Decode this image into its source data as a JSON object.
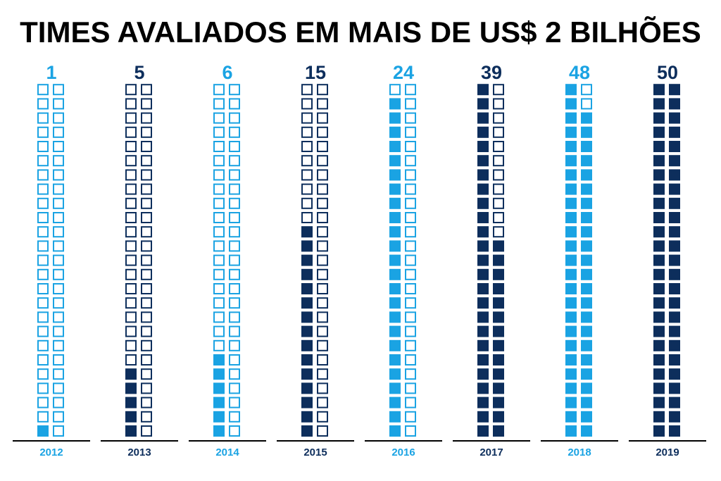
{
  "chart_data": {
    "type": "bar",
    "title": "TIMES AVALIADOS EM MAIS DE US$ 2 BILHÕES",
    "categories": [
      "2012",
      "2013",
      "2014",
      "2015",
      "2016",
      "2017",
      "2018",
      "2019"
    ],
    "values": [
      1,
      5,
      6,
      15,
      24,
      39,
      48,
      50
    ],
    "max_value": 50,
    "grid_columns": 2,
    "colors": [
      "#1aa3e3",
      "#0d2e5c",
      "#1aa3e3",
      "#0d2e5c",
      "#1aa3e3",
      "#0d2e5c",
      "#1aa3e3",
      "#0d2e5c"
    ],
    "xlabel": "",
    "ylabel": ""
  }
}
